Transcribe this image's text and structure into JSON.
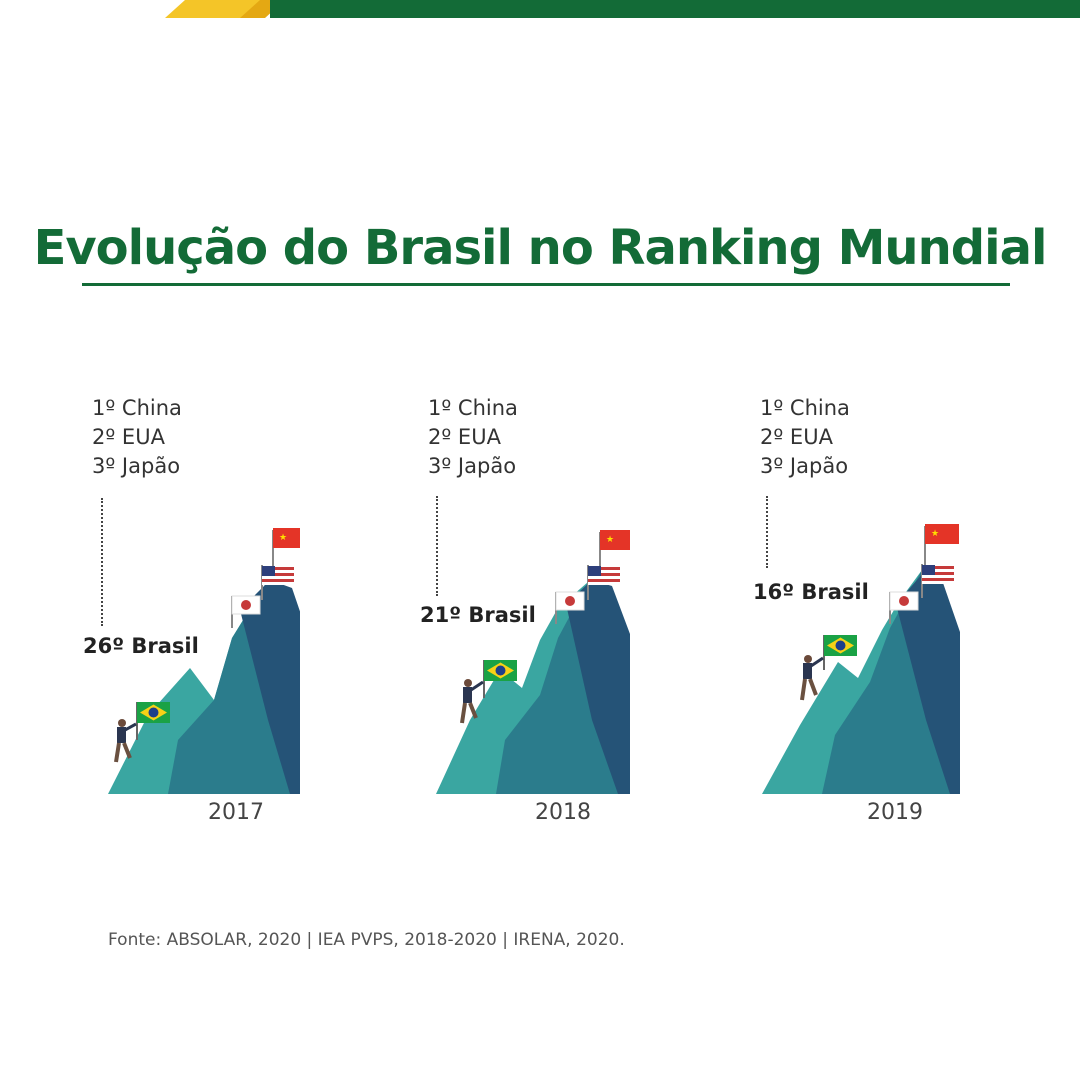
{
  "title": "Evolução do Brasil no Ranking Mundial",
  "colors": {
    "brand_green": "#136b37",
    "brand_yellow": "#f4c528",
    "mountain_light": "#3aa6a1",
    "mountain_mid": "#2b7c8c",
    "mountain_dark": "#255377"
  },
  "panels": [
    {
      "year": "2017",
      "top3": [
        "1º China",
        "2º EUA",
        "3º Japão"
      ],
      "brasil_label": "26º Brasil",
      "brasil_rank": 26
    },
    {
      "year": "2018",
      "top3": [
        "1º China",
        "2º EUA",
        "3º Japão"
      ],
      "brasil_label": "21º Brasil",
      "brasil_rank": 21
    },
    {
      "year": "2019",
      "top3": [
        "1º China",
        "2º EUA",
        "3º Japão"
      ],
      "brasil_label": "16º Brasil",
      "brasil_rank": 16
    }
  ],
  "source": "Fonte: ABSOLAR, 2020  |  IEA PVPS, 2018-2020  |  IRENA, 2020."
}
